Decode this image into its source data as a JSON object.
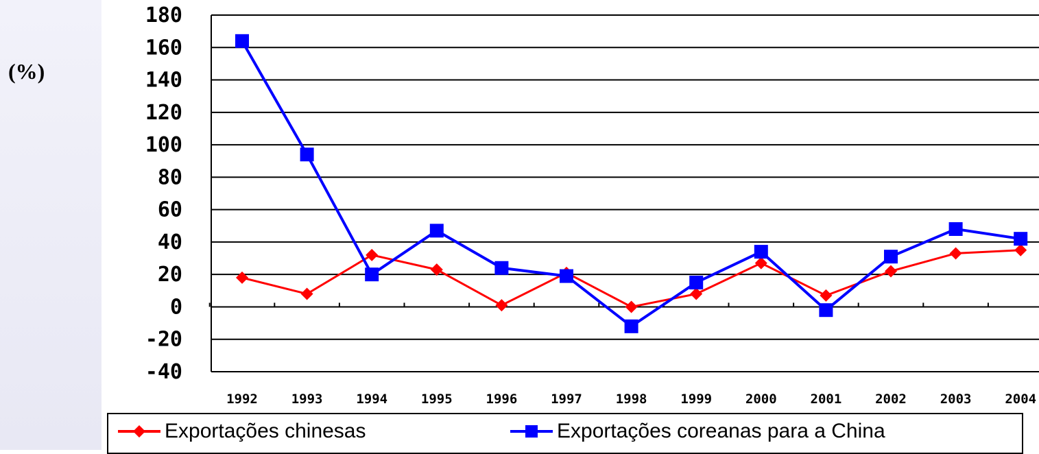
{
  "unit_label": "(%)",
  "chart_data": {
    "type": "line",
    "title": "",
    "xlabel": "",
    "ylabel": "(%)",
    "x": [
      "1992",
      "1993",
      "1994",
      "1995",
      "1996",
      "1997",
      "1998",
      "1999",
      "2000",
      "2001",
      "2002",
      "2003",
      "2004"
    ],
    "ylim": [
      -40,
      180
    ],
    "yticks": [
      "180",
      "160",
      "140",
      "120",
      "100",
      "80",
      "60",
      "40",
      "20",
      "0",
      "-20",
      "-40"
    ],
    "xtick_labels": [
      "1992",
      "1993",
      "1994",
      "1995",
      "1996",
      "1997",
      "1998",
      "1999",
      "2000",
      "2001",
      "2002",
      "2003",
      "2004"
    ],
    "grid": true,
    "legend_position": "bottom",
    "series": [
      {
        "name": "Exportações chinesas",
        "color": "#ff0000",
        "marker": "diamond",
        "values": [
          18,
          8,
          32,
          23,
          1,
          21,
          0,
          8,
          27,
          7,
          22,
          33,
          35
        ]
      },
      {
        "name": "Exportações coreanas para a China",
        "color": "#0000ff",
        "marker": "square",
        "values": [
          164,
          94,
          20,
          47,
          24,
          19,
          -12,
          15,
          34,
          -2,
          31,
          48,
          42
        ]
      }
    ]
  }
}
